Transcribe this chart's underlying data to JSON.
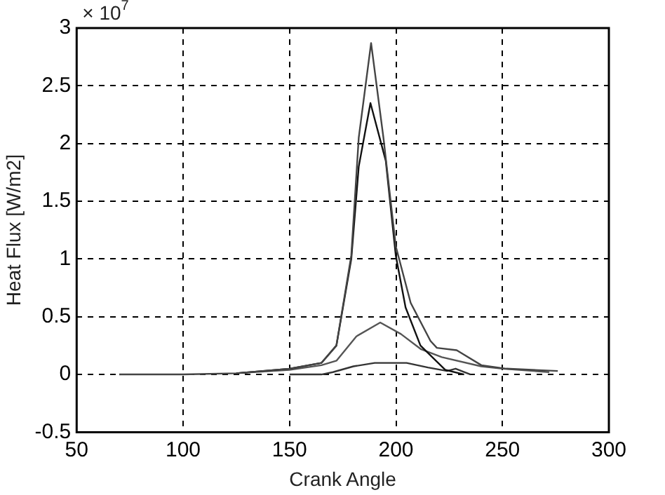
{
  "chart_data": {
    "type": "line",
    "xlabel": "Crank Angle",
    "ylabel": "Heat Flux [W/m2]",
    "annotations": [
      "× 10$^{7}$"
    ],
    "series": [
      {
        "color": "#444444",
        "x": [
          70,
          100,
          125,
          150,
          165,
          172,
          179,
          182.5,
          188.3,
          194.1,
          199.9,
          206.9,
          216.2,
          219.2,
          228.5,
          240.1,
          251.8,
          276
        ],
        "values": [
          0,
          0,
          0.01,
          0.05,
          0.1,
          0.25,
          1.03,
          2.05,
          2.87,
          2.05,
          1.11,
          0.62,
          0.29,
          0.23,
          0.21,
          0.08,
          0.05,
          0.03
        ]
      },
      {
        "color": "#111111",
        "x": [
          125,
          150,
          165,
          172,
          179,
          182.5,
          188,
          195.2,
          199.9,
          204.5,
          211.5,
          223.1,
          232
        ],
        "values": [
          0.01,
          0.05,
          0.1,
          0.25,
          1.0,
          1.8,
          2.35,
          1.85,
          1.03,
          0.58,
          0.25,
          0.04,
          0
        ]
      },
      {
        "color": "#555555",
        "x": [
          125,
          150,
          165,
          172.1,
          181.4,
          192.6,
          202.3,
          211.6,
          221.5,
          240,
          250,
          272
        ],
        "values": [
          0.01,
          0.04,
          0.08,
          0.12,
          0.33,
          0.45,
          0.35,
          0.22,
          0.15,
          0.07,
          0.05,
          0.02
        ]
      },
      {
        "color": "#333333",
        "x": [
          150,
          165,
          170.4,
          180,
          190,
          205,
          215,
          224,
          228,
          235
        ],
        "values": [
          0,
          0,
          0.02,
          0.07,
          0.1,
          0.1,
          0.06,
          0.03,
          0.05,
          0
        ]
      }
    ],
    "xlim": [
      50,
      300
    ],
    "xticks": [
      50,
      100,
      150,
      200,
      250,
      300
    ],
    "ylim": [
      -0.5,
      3
    ],
    "yticks": [
      -0.5,
      0,
      0.5,
      1,
      1.5,
      2,
      2.5,
      3
    ],
    "grid": true,
    "legend": false,
    "marker": "none",
    "line_style": "solid"
  }
}
